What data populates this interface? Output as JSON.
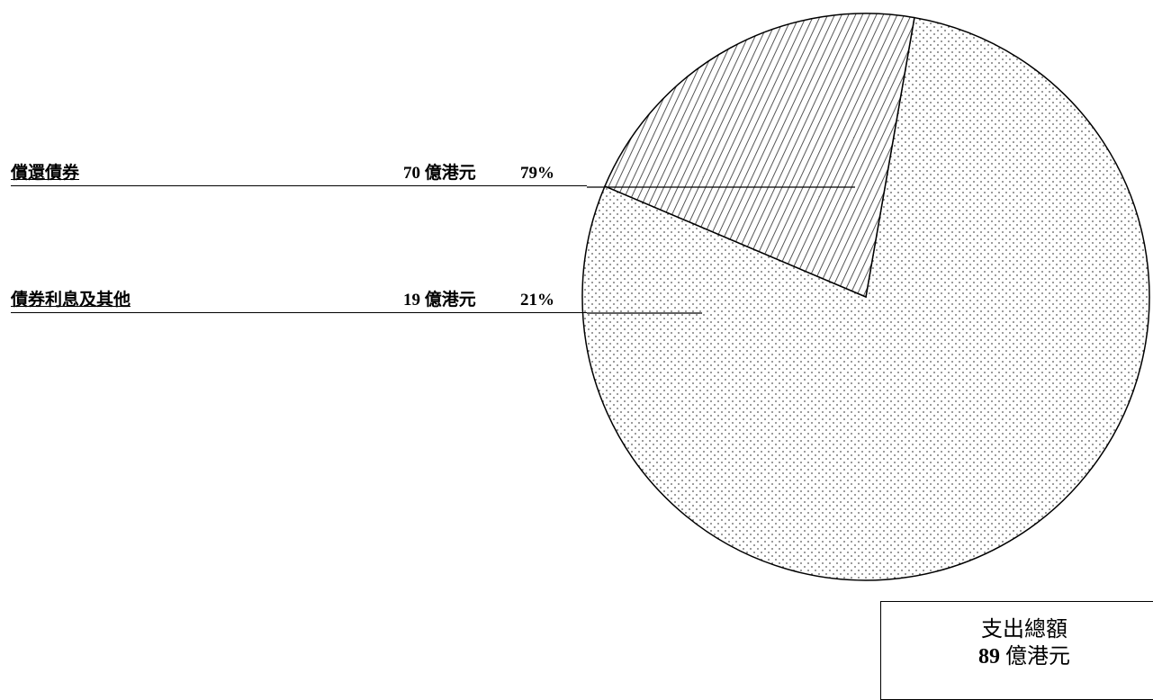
{
  "chart_data": {
    "type": "pie",
    "slices": [
      {
        "label": "償還債券",
        "value": 70,
        "value_text": "70 億港元",
        "percent_text": "79%",
        "pattern": "dots"
      },
      {
        "label": "債券利息及其他",
        "value": 19,
        "value_text": "19 億港元",
        "percent_text": "21%",
        "pattern": "hatch"
      }
    ],
    "total": {
      "title": "支出總額",
      "value": "89",
      "unit": "億港元"
    }
  }
}
